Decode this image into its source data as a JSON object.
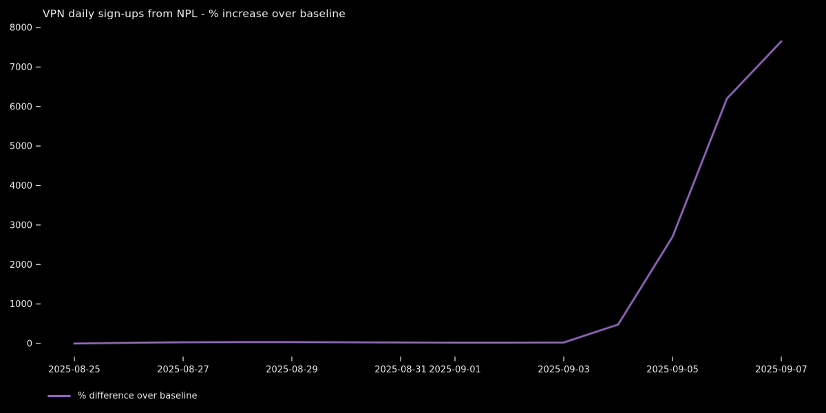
{
  "chart_data": {
    "type": "line",
    "title": "VPN daily sign-ups from NPL - % increase over baseline",
    "x": [
      "2025-08-25",
      "2025-08-26",
      "2025-08-27",
      "2025-08-28",
      "2025-08-29",
      "2025-08-30",
      "2025-08-31",
      "2025-09-01",
      "2025-09-02",
      "2025-09-03",
      "2025-09-04",
      "2025-09-05",
      "2025-09-06",
      "2025-09-07"
    ],
    "series": [
      {
        "name": "% difference over baseline",
        "color": "#9467bd",
        "values": [
          0,
          15,
          30,
          35,
          35,
          30,
          25,
          20,
          20,
          25,
          480,
          2700,
          6200,
          7650
        ]
      }
    ],
    "x_tick_labels": [
      "2025-08-25",
      "2025-08-27",
      "2025-08-29",
      "2025-08-31",
      "2025-09-01",
      "2025-09-03",
      "2025-09-05",
      "2025-09-07"
    ],
    "y_ticks": [
      0,
      1000,
      2000,
      3000,
      4000,
      5000,
      6000,
      7000,
      8000
    ],
    "ylim": [
      0,
      8000
    ],
    "xlabel": "",
    "ylabel": "",
    "grid": false,
    "legend": {
      "position": "lower-left",
      "entries": [
        "% difference over baseline"
      ]
    },
    "colors": {
      "background": "#000000",
      "text": "#e6e6e6",
      "tick": "#d8d8d8"
    }
  }
}
